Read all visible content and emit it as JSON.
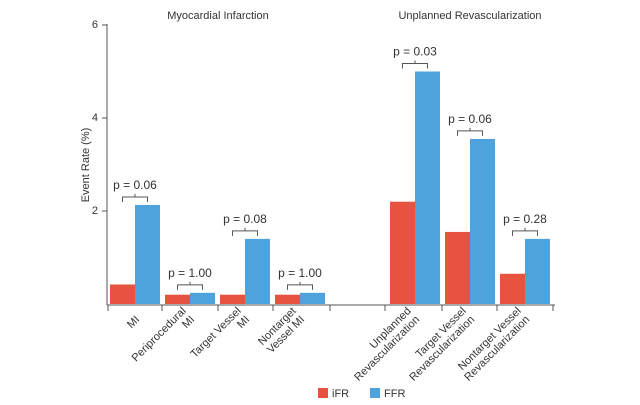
{
  "chart_data": {
    "type": "bar",
    "section_titles": [
      "Myocardial Infarction",
      "Unplanned Revascularization"
    ],
    "y_label": "Event Rate (%)",
    "categories": [
      [
        "MI"
      ],
      [
        "Periprocedural",
        "MI"
      ],
      [
        "Target Vessel",
        "MI"
      ],
      [
        "Nontarget",
        "Vessel MI"
      ],
      [
        "Unplanned",
        "Revascularization"
      ],
      [
        "Target Vessel",
        "Revascularization"
      ],
      [
        "Nontarget Vessel",
        "Revascularization"
      ]
    ],
    "series": [
      {
        "name": "iFR",
        "color": "#e8533f",
        "values": [
          0.42,
          0.2,
          0.2,
          0.2,
          2.2,
          1.55,
          0.65
        ]
      },
      {
        "name": "FFR",
        "color": "#4fa3dc",
        "values": [
          2.13,
          0.24,
          1.4,
          0.24,
          5.0,
          3.55,
          1.4
        ]
      }
    ],
    "annotations": [
      "p = 0.06",
      "p = 1.00",
      "p = 0.08",
      "p = 1.00",
      "p = 0.03",
      "p = 0.06",
      "p = 0.28"
    ],
    "ylim": [
      0,
      6
    ],
    "yticks": [
      2,
      4,
      6
    ]
  }
}
